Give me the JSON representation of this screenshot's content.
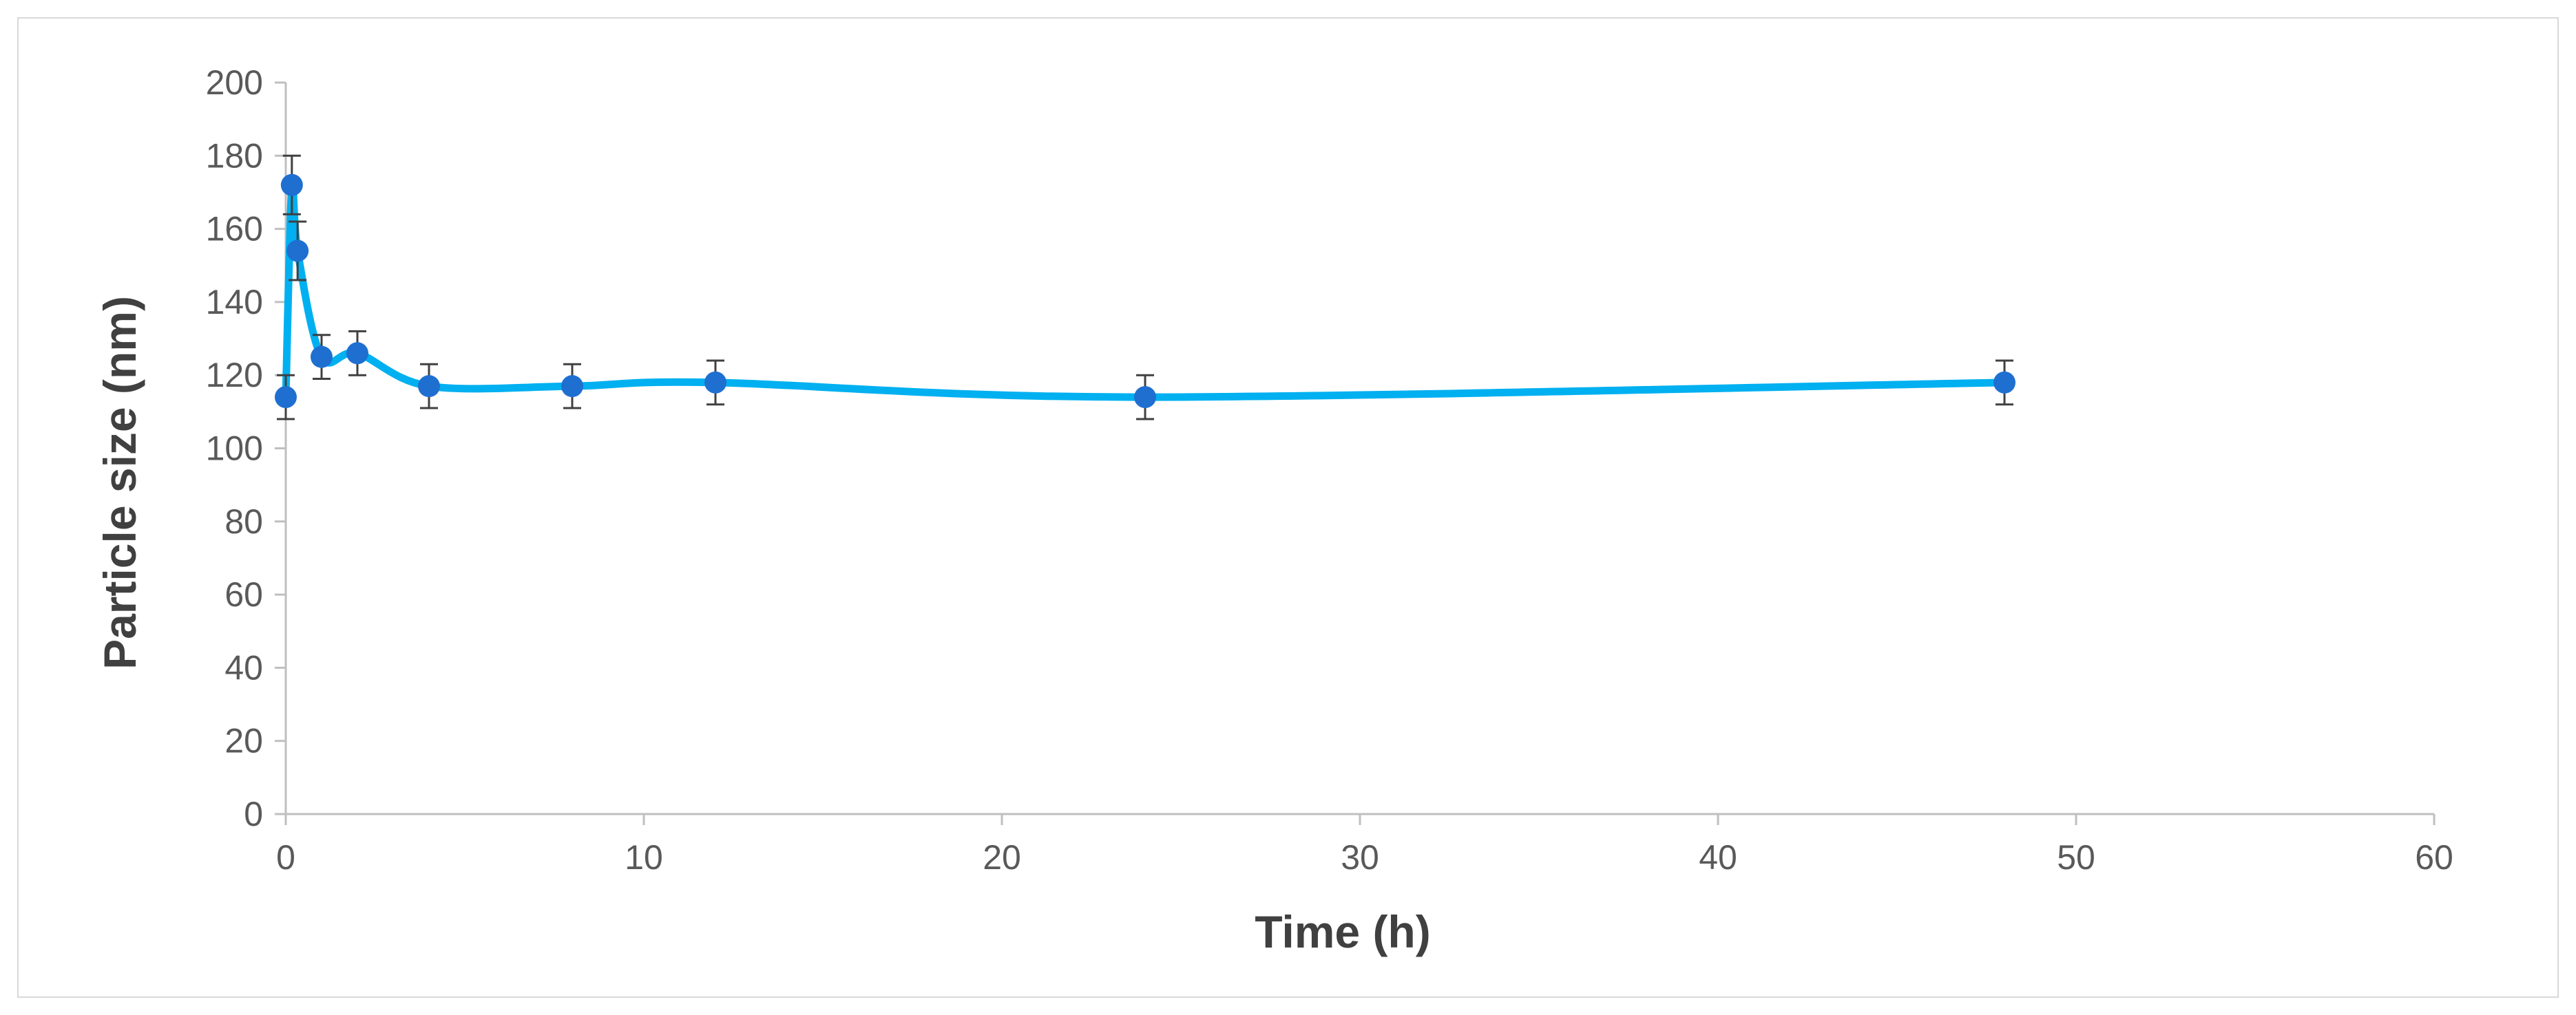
{
  "chart_data": {
    "type": "line",
    "title": "",
    "xlabel": "Time (h)",
    "ylabel": "Particle size (nm)",
    "xlim": [
      0,
      60
    ],
    "ylim": [
      0,
      200
    ],
    "x_ticks": [
      0,
      10,
      20,
      30,
      40,
      50,
      60
    ],
    "y_ticks": [
      0,
      20,
      40,
      60,
      80,
      100,
      120,
      140,
      160,
      180,
      200
    ],
    "grid": false,
    "legend": "none",
    "line_color": "#00b0f0",
    "marker_color": "#1f6fd1",
    "errorbar_color": "#404040",
    "series": [
      {
        "x": [
          0,
          0.17,
          0.33,
          1,
          2,
          4,
          8,
          12,
          24,
          48
        ],
        "y": [
          114,
          172,
          154,
          125,
          126,
          117,
          117,
          118,
          114,
          118
        ],
        "error": [
          6,
          8,
          8,
          6,
          6,
          6,
          6,
          6,
          6,
          6
        ]
      }
    ]
  }
}
